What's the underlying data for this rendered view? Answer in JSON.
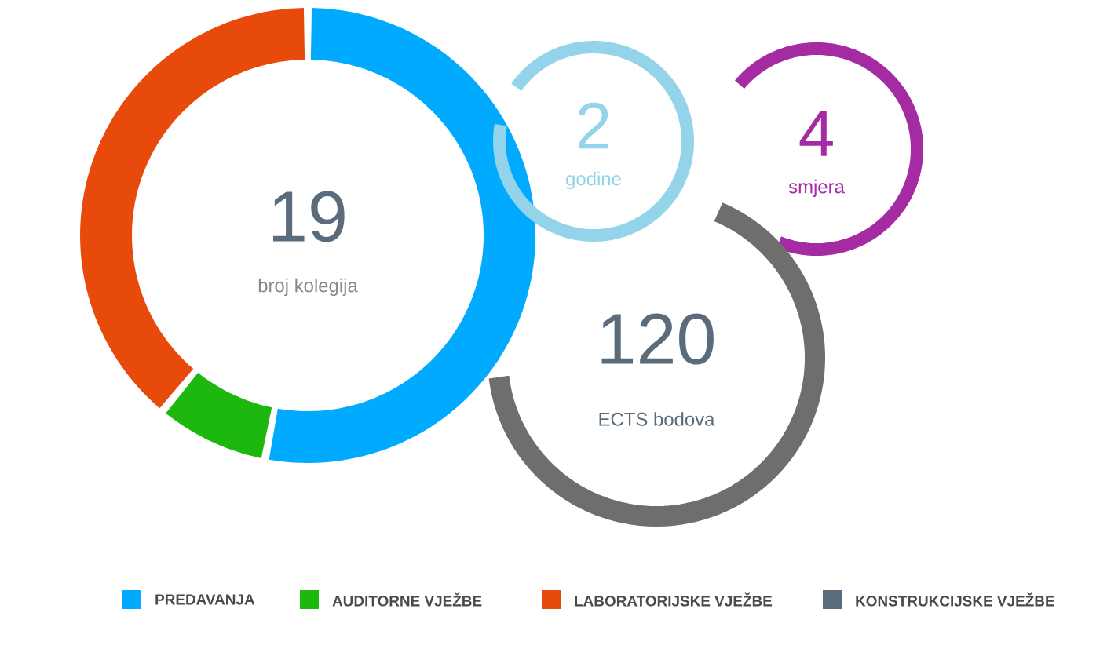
{
  "chart_data": [
    {
      "type": "donut",
      "categories": [
        "PREDAVANJA",
        "AUDITORNE VJEŽBE",
        "LABORATORIJSKE VJEŽBE",
        "KONSTRUKCIJSKE VJEŽBE"
      ],
      "values": [
        53,
        8,
        39,
        0
      ],
      "colors": [
        "#00aaff",
        "#1db80e",
        "#e84a0c",
        "#5a6b7b"
      ],
      "annotations": [
        "19",
        "broj kolegija"
      ],
      "legend": "bottom"
    },
    {
      "type": "other",
      "annotations": [
        "2",
        "godine"
      ],
      "color": "#93d4ea"
    },
    {
      "type": "other",
      "annotations": [
        "4",
        "smjera"
      ],
      "color": "#a52ba3"
    },
    {
      "type": "other",
      "annotations": [
        "120",
        "ECTS bodova"
      ],
      "color": "#6e6e6e"
    }
  ]
}
